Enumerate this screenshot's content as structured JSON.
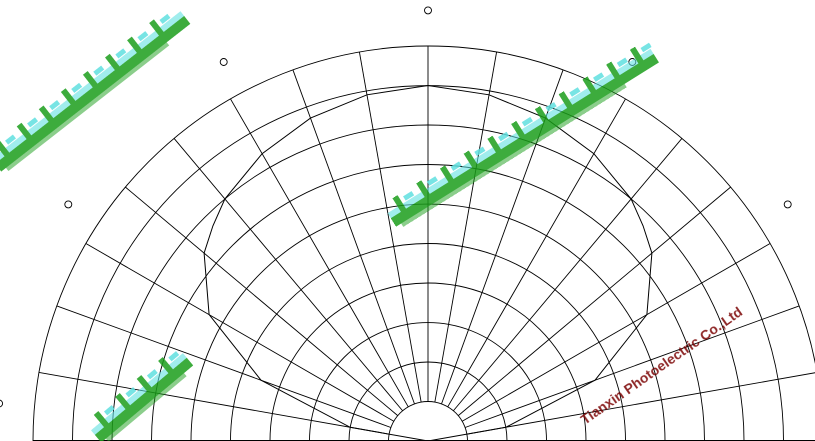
{
  "chart_data": {
    "type": "polar-plot",
    "title": "",
    "angle_range_deg": [
      -90,
      90
    ],
    "angle_step_deg": 10,
    "radial_range": [
      0,
      1.0
    ],
    "radial_step": 0.1,
    "grid": true,
    "outer_markers": 7,
    "series": [
      {
        "angles_deg": [
          -90,
          -80,
          -70,
          -60,
          -50,
          -45,
          -40,
          -30,
          -20,
          -10,
          0,
          10,
          20,
          30,
          40,
          45,
          50,
          60,
          70,
          80,
          90
        ],
        "values": [
          0.0,
          0.2,
          0.45,
          0.64,
          0.74,
          0.77,
          0.8,
          0.84,
          0.87,
          0.89,
          0.9,
          0.89,
          0.87,
          0.84,
          0.8,
          0.77,
          0.74,
          0.64,
          0.45,
          0.2,
          0.0
        ]
      }
    ]
  },
  "watermark": {
    "company_en": "Tianxin Photoelectric Co.,Ltd",
    "colors": {
      "green": "#1a9e1a",
      "cyan": "#5fe0e0",
      "dark_red": "#7a0000"
    }
  }
}
